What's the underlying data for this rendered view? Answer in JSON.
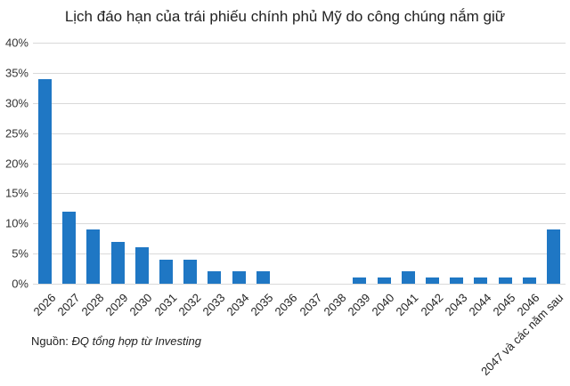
{
  "chart_data": {
    "type": "bar",
    "title": "Lịch đáo hạn của trái phiếu chính phủ Mỹ do công chúng nắm giữ",
    "xlabel": "",
    "ylabel": "",
    "ylim": [
      0,
      40
    ],
    "yticks": [
      "0%",
      "5%",
      "10%",
      "15%",
      "20%",
      "25%",
      "30%",
      "35%",
      "40%"
    ],
    "grid": true,
    "legend": null,
    "categories": [
      "2026",
      "2027",
      "2028",
      "2029",
      "2030",
      "2031",
      "2032",
      "2033",
      "2034",
      "2035",
      "2036",
      "2037",
      "2038",
      "2039",
      "2040",
      "2041",
      "2042",
      "2043",
      "2044",
      "2045",
      "2046",
      "2047 và các năm sau"
    ],
    "values": [
      34,
      12,
      9,
      7,
      6,
      4,
      4,
      2,
      2,
      2,
      0,
      0,
      0,
      1,
      1,
      2,
      1,
      1,
      1,
      1,
      1,
      9
    ],
    "unit": "%",
    "bar_color": "#1f77c4",
    "source_label": "Nguồn:",
    "source_text": "ĐQ tổng hợp từ Investing"
  }
}
